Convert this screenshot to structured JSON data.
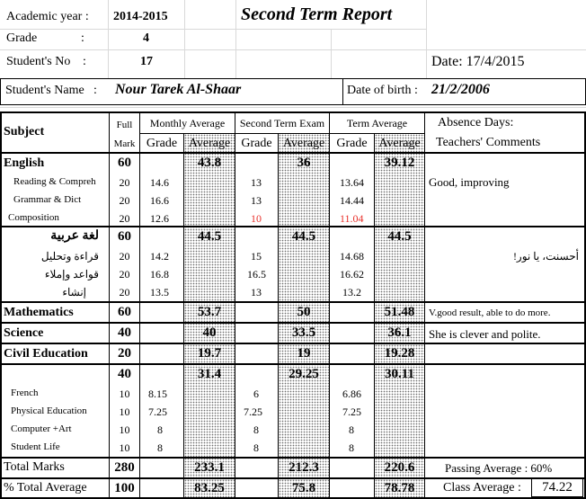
{
  "header": {
    "academic_year_label": "Academic year :",
    "academic_year": "2014-2015",
    "title": "Second Term Report",
    "grade_label": "Grade",
    "grade_colon": ":",
    "grade": "4",
    "student_no_label": "Student's No",
    "student_no_colon": ":",
    "student_no": "17",
    "date": "Date: 17/4/2015",
    "student_name_label": "Student's Name",
    "student_name_colon": ":",
    "student_name": "Nour Tarek Al-Shaar",
    "dob_label": "Date of birth :",
    "dob": "21/2/2006"
  },
  "columns": {
    "subject": "Subject",
    "full": "Full",
    "mark": "Mark",
    "monthly": "Monthly Average",
    "exam": "Second Term Exam",
    "term": "Term Average",
    "absence": "Absence Days:",
    "comments": "Teachers' Comments",
    "grade": "Grade",
    "average": "Average"
  },
  "rows": {
    "english": {
      "name": "English",
      "full": "60",
      "m_avg": "43.8",
      "e_avg": "36",
      "t_avg": "39.12"
    },
    "reading": {
      "name": "Reading  & Compreh",
      "full": "20",
      "m_grade": "14.6",
      "e_grade": "13",
      "t_grade": "13.64"
    },
    "grammar": {
      "name": "Grammar & Dict",
      "full": "20",
      "m_grade": "16.6",
      "e_grade": "13",
      "t_grade": "14.44"
    },
    "composition": {
      "name": "Composition",
      "full": "20",
      "m_grade": "12.6",
      "e_grade": "10",
      "t_grade": "11.04"
    },
    "arabic": {
      "name": "لغة عربية",
      "full": "60",
      "m_avg": "44.5",
      "e_avg": "44.5",
      "t_avg": "44.5"
    },
    "ar_reading": {
      "name": "قراءة وتحليل",
      "full": "20",
      "m_grade": "14.2",
      "e_grade": "15",
      "t_grade": "14.68"
    },
    "ar_grammar": {
      "name": "قواعد وإملاء",
      "full": "20",
      "m_grade": "16.8",
      "e_grade": "16.5",
      "t_grade": "16.62"
    },
    "ar_writing": {
      "name": "إنشاء",
      "full": "20",
      "m_grade": "13.5",
      "e_grade": "13",
      "t_grade": "13.2"
    },
    "math": {
      "name": "Mathematics",
      "full": "60",
      "m_avg": "53.7",
      "e_avg": "50",
      "t_avg": "51.48"
    },
    "science": {
      "name": "Science",
      "full": "40",
      "m_avg": "40",
      "e_avg": "33.5",
      "t_avg": "36.1"
    },
    "civil": {
      "name": "Civil Education",
      "full": "20",
      "m_avg": "19.7",
      "e_avg": "19",
      "t_avg": "19.28"
    },
    "group": {
      "full": "40",
      "m_avg": "31.4",
      "e_avg": "29.25",
      "t_avg": "30.11"
    },
    "french": {
      "name": "French",
      "full": "10",
      "m_grade": "8.15",
      "e_grade": "6",
      "t_grade": "6.86"
    },
    "pe": {
      "name": "Physical Education",
      "full": "10",
      "m_grade": "7.25",
      "e_grade": "7.25",
      "t_grade": "7.25"
    },
    "computer": {
      "name": "Computer +Art",
      "full": "10",
      "m_grade": "8",
      "e_grade": "8",
      "t_grade": "8"
    },
    "life": {
      "name": "Student Life",
      "full": "10",
      "m_grade": "8",
      "e_grade": "8",
      "t_grade": "8"
    }
  },
  "comments": {
    "english": "Good, improving",
    "arabic": "أحسنت، يا نور!",
    "math": "V.good result, able to do more.",
    "science": "She is clever and polite."
  },
  "totals": {
    "total_label": "Total Marks",
    "total_full": "280",
    "total_m": "233.1",
    "total_e": "212.3",
    "total_t": "220.6",
    "passing": "Passing Average : 60%",
    "pct_label": "% Total Average",
    "pct_full": "100",
    "pct_m": "83.25",
    "pct_e": "75.8",
    "pct_t": "78.78",
    "class_label": "Class Average :",
    "class_value": "74.22"
  }
}
